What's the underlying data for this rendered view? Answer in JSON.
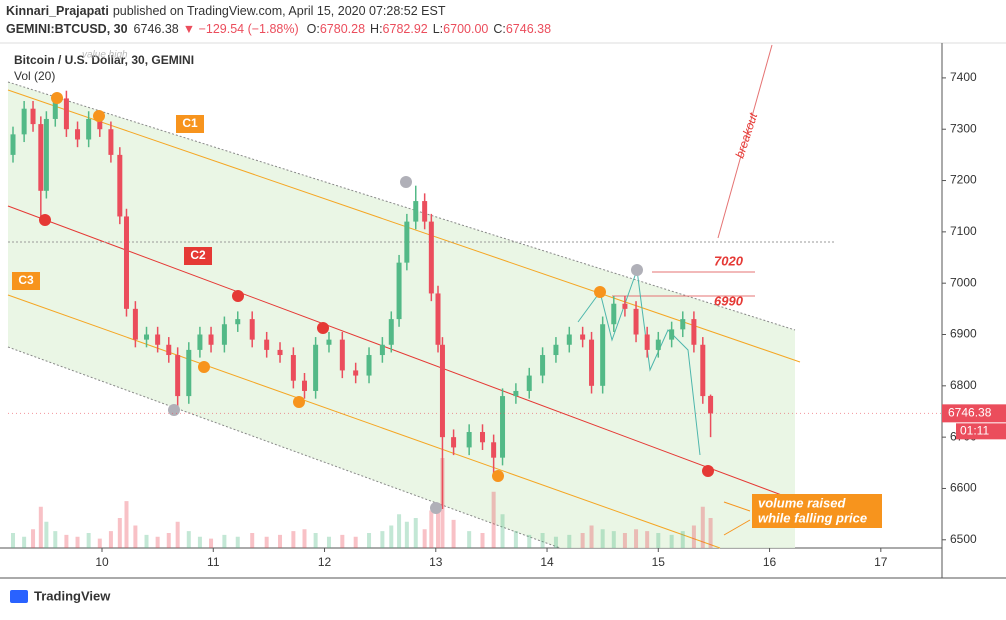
{
  "header": {
    "author": "Kinnari_Prajapati",
    "published": "published on TradingView.com, April 15, 2020 07:28:52 EST",
    "symbol": "GEMINI:BTCUSD, 30",
    "last": "6746.38",
    "change": "▼ −129.54 (−1.88%)",
    "ohlc": [
      {
        "k": "O:",
        "v": "6780.28"
      },
      {
        "k": "H:",
        "v": "6782.92"
      },
      {
        "k": "L:",
        "v": "6700.00"
      },
      {
        "k": "C:",
        "v": "6746.38"
      }
    ]
  },
  "footer": {
    "brand": "TradingView"
  },
  "chart_data": {
    "type": "candlestick",
    "title": "Bitcoin / U.S. Dollar, 30, GEMINI",
    "indicator": "Vol (20)",
    "up_color": "#53b987",
    "down_color": "#eb4d5c",
    "x": [
      9.2,
      9.3,
      9.38,
      9.45,
      9.5,
      9.58,
      9.68,
      9.78,
      9.88,
      9.98,
      10.08,
      10.16,
      10.22,
      10.3,
      10.4,
      10.5,
      10.6,
      10.68,
      10.78,
      10.88,
      10.98,
      11.1,
      11.22,
      11.35,
      11.48,
      11.6,
      11.72,
      11.82,
      11.92,
      12.04,
      12.16,
      12.28,
      12.4,
      12.52,
      12.6,
      12.67,
      12.74,
      12.82,
      12.9,
      12.96,
      13.02,
      13.06,
      13.16,
      13.3,
      13.42,
      13.52,
      13.6,
      13.72,
      13.84,
      13.96,
      14.08,
      14.2,
      14.32,
      14.4,
      14.5,
      14.6,
      14.7,
      14.8,
      14.9,
      15.0,
      15.12,
      15.22,
      15.32,
      15.4,
      15.47
    ],
    "open": [
      7250,
      7290,
      7340,
      7310,
      7180,
      7320,
      7360,
      7300,
      7280,
      7320,
      7300,
      7250,
      7130,
      6950,
      6890,
      6900,
      6880,
      6860,
      6780,
      6870,
      6900,
      6880,
      6920,
      6930,
      6890,
      6870,
      6860,
      6810,
      6790,
      6880,
      6890,
      6830,
      6820,
      6860,
      6880,
      6930,
      7040,
      7120,
      7160,
      7120,
      6980,
      6880,
      6700,
      6680,
      6710,
      6690,
      6660,
      6780,
      6790,
      6820,
      6860,
      6880,
      6900,
      6890,
      6800,
      6920,
      6960,
      6950,
      6900,
      6870,
      6890,
      6910,
      6930,
      6880,
      6780.28
    ],
    "high": [
      7305,
      7355,
      7355,
      7325,
      7335,
      7370,
      7375,
      7315,
      7335,
      7335,
      7315,
      7265,
      7145,
      6965,
      6915,
      6915,
      6895,
      6875,
      6885,
      6915,
      6915,
      6935,
      6945,
      6945,
      6905,
      6885,
      6875,
      6825,
      6895,
      6905,
      6905,
      6845,
      6875,
      6895,
      6945,
      7055,
      7135,
      7190,
      7175,
      7135,
      6995,
      6895,
      6715,
      6725,
      6725,
      6705,
      6795,
      6805,
      6835,
      6875,
      6895,
      6915,
      6915,
      6905,
      6935,
      6975,
      6975,
      6965,
      6915,
      6905,
      6925,
      6945,
      6945,
      6895,
      6782.92
    ],
    "low": [
      7235,
      7275,
      7295,
      7120,
      7165,
      7305,
      7285,
      7265,
      7265,
      7285,
      7235,
      7115,
      6935,
      6875,
      6875,
      6865,
      6845,
      6750,
      6765,
      6855,
      6865,
      6865,
      6905,
      6875,
      6855,
      6845,
      6795,
      6775,
      6775,
      6865,
      6815,
      6805,
      6805,
      6845,
      6865,
      6915,
      7025,
      7105,
      7105,
      6965,
      6865,
      6560,
      6665,
      6665,
      6675,
      6620,
      6645,
      6765,
      6775,
      6805,
      6845,
      6865,
      6875,
      6785,
      6785,
      6905,
      6935,
      6885,
      6855,
      6855,
      6875,
      6895,
      6865,
      6765,
      6700
    ],
    "close": [
      7290,
      7340,
      7310,
      7180,
      7320,
      7360,
      7300,
      7280,
      7320,
      7300,
      7250,
      7130,
      6950,
      6890,
      6900,
      6880,
      6860,
      6780,
      6870,
      6900,
      6880,
      6920,
      6930,
      6890,
      6870,
      6860,
      6810,
      6790,
      6880,
      6890,
      6830,
      6820,
      6860,
      6880,
      6930,
      7040,
      7120,
      7160,
      7120,
      6980,
      6880,
      6700,
      6680,
      6710,
      6690,
      6660,
      6780,
      6790,
      6820,
      6860,
      6880,
      6900,
      6890,
      6800,
      6920,
      6960,
      6950,
      6900,
      6870,
      6890,
      6910,
      6930,
      6880,
      6780,
      6746.38
    ],
    "volume": [
      8,
      6,
      10,
      22,
      14,
      9,
      7,
      6,
      8,
      5,
      9,
      16,
      25,
      12,
      7,
      6,
      8,
      14,
      9,
      6,
      5,
      7,
      6,
      8,
      6,
      7,
      9,
      10,
      8,
      6,
      7,
      6,
      8,
      9,
      12,
      18,
      14,
      16,
      10,
      20,
      24,
      48,
      15,
      9,
      8,
      30,
      18,
      9,
      7,
      8,
      6,
      7,
      8,
      12,
      10,
      9,
      8,
      10,
      9,
      8,
      7,
      9,
      12,
      22,
      16
    ],
    "xlim": [
      9.155,
      17.55
    ],
    "xticks": [
      10,
      11,
      12,
      13,
      14,
      15,
      16,
      17
    ],
    "ylim": [
      6484,
      7468
    ],
    "yticks": [
      6500,
      6600,
      6700,
      6800,
      6900,
      7000,
      7100,
      7200,
      7300,
      7400
    ],
    "annotations": {
      "c1": "C1",
      "c2": "C2",
      "c3": "C3",
      "level_high": "7020",
      "level_low": "6990",
      "breakout": "breakout",
      "volume_note": [
        "volume raised",
        "while falling price"
      ],
      "faint": "value high",
      "countdown": "01:11"
    }
  }
}
